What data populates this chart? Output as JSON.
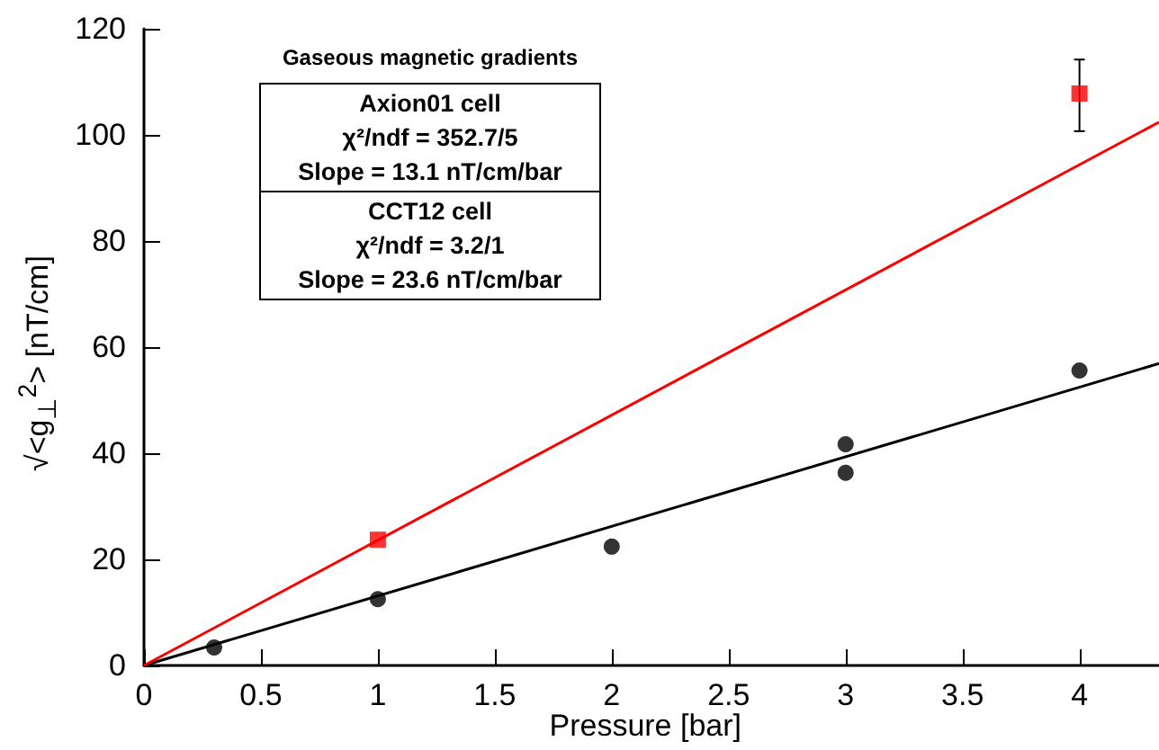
{
  "chart_data": {
    "type": "scatter",
    "title": "Gaseous magnetic gradients",
    "xlabel": "Pressure [bar]",
    "ylabel": "√<g$_{⊥}$$^{2}$> [nT/cm]",
    "xlim": [
      0,
      4.34
    ],
    "xticks": [
      0,
      0.5,
      1,
      1.5,
      2,
      2.5,
      3,
      3.5,
      4
    ],
    "ylim": [
      0,
      120
    ],
    "yticks": [
      0,
      20,
      40,
      60,
      80,
      100,
      120
    ],
    "grid": false,
    "annotations": [
      "Axion01 cell",
      "χ²/ndf = 352.7/5",
      "Slope = 13.1 nT/cm/bar",
      "CCT12 cell",
      "χ²/ndf = 3.2/1",
      "Slope = 23.6 nT/cm/bar"
    ],
    "series": [
      {
        "color": "#000000",
        "marker": "circle",
        "x": [
          0.3,
          1,
          2,
          3,
          3,
          4
        ],
        "values": [
          3.4,
          12.5,
          22.4,
          41.7,
          36.3,
          55.6
        ]
      },
      {
        "color": "#ff0000",
        "marker": "square",
        "x": [
          1,
          4
        ],
        "values": [
          23.7,
          107.8
        ],
        "errors": [
          null,
          [
            100.7,
            114.2
          ]
        ]
      },
      {
        "type": "line",
        "color": "#000000",
        "line_style": "solid",
        "x": [
          0,
          4.34
        ],
        "values": [
          0,
          56.9
        ]
      },
      {
        "type": "line",
        "color": "#ff0000",
        "line_style": "solid",
        "x": [
          0,
          4.34
        ],
        "values": [
          0,
          102.4
        ]
      }
    ]
  }
}
